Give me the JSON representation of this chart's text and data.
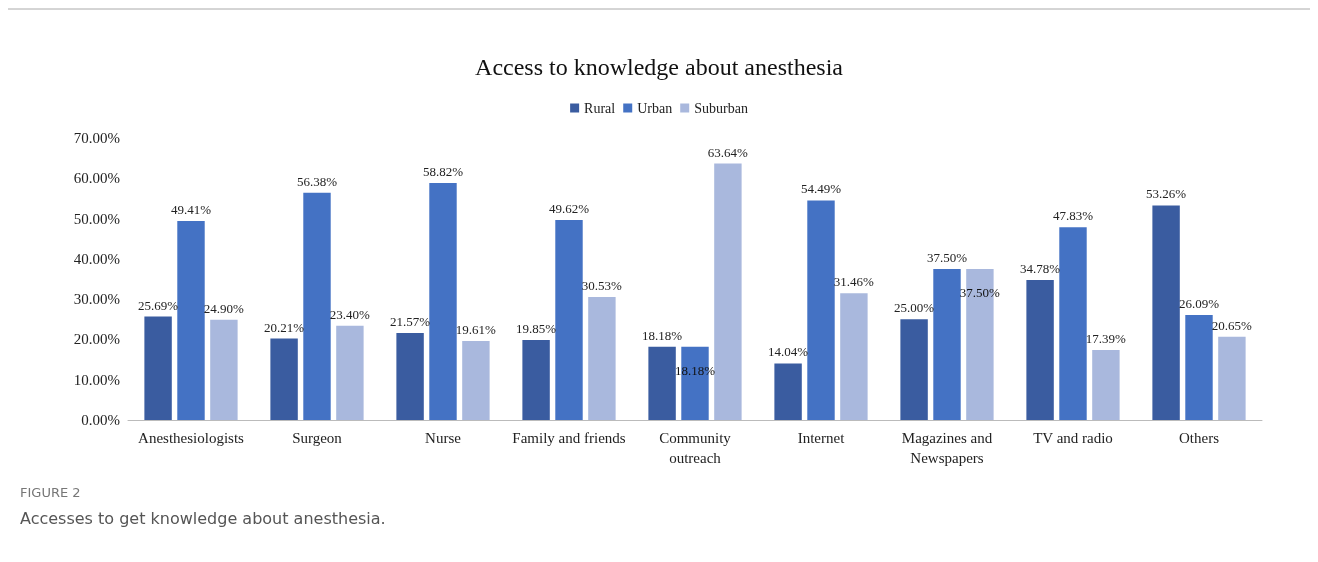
{
  "chart_data": {
    "type": "bar",
    "title": "Access to knowledge about anesthesia",
    "categories": [
      "Anesthesiologists",
      "Surgeon",
      "Nurse",
      "Family and friends",
      "Community\noutreach",
      "Internet",
      "Magazines and\nNewspapers",
      "TV and radio",
      "Others"
    ],
    "series": [
      {
        "name": "Rural",
        "color": "#3a5ca0",
        "values": [
          25.69,
          20.21,
          21.57,
          19.85,
          18.18,
          14.04,
          25.0,
          34.78,
          53.26
        ],
        "value_labels": [
          "25.69%",
          "20.21%",
          "21.57%",
          "19.85%",
          "18.18%",
          "14.04%",
          "25.00%",
          "34.78%",
          "53.26%"
        ]
      },
      {
        "name": "Urban",
        "color": "#4472c4",
        "values": [
          49.41,
          56.38,
          58.82,
          49.62,
          18.18,
          54.49,
          37.5,
          47.83,
          26.09
        ],
        "value_labels": [
          "49.41%",
          "56.38%",
          "58.82%",
          "49.62%",
          "18.18%",
          "54.49%",
          "37.50%",
          "47.83%",
          "26.09%"
        ]
      },
      {
        "name": "Suburban",
        "color": "#a9b8dd",
        "values": [
          24.9,
          23.4,
          19.61,
          30.53,
          63.64,
          31.46,
          37.5,
          17.39,
          20.65
        ],
        "value_labels": [
          "24.90%",
          "23.40%",
          "19.61%",
          "30.53%",
          "63.64%",
          "31.46%",
          "37.50%",
          "17.39%",
          "20.65%"
        ]
      }
    ],
    "ylim": [
      0,
      70
    ],
    "yticks": [
      {
        "value": 0,
        "label": "0.00%"
      },
      {
        "value": 10,
        "label": "10.00%"
      },
      {
        "value": 20,
        "label": "20.00%"
      },
      {
        "value": 30,
        "label": "30.00%"
      },
      {
        "value": 40,
        "label": "40.00%"
      },
      {
        "value": 50,
        "label": "50.00%"
      },
      {
        "value": 60,
        "label": "60.00%"
      },
      {
        "value": 70,
        "label": "70.00%"
      }
    ],
    "grid": false,
    "legend": "top",
    "annotations": [
      "FIGURE 2",
      "Accesses to get knowledge about anesthesia."
    ]
  }
}
